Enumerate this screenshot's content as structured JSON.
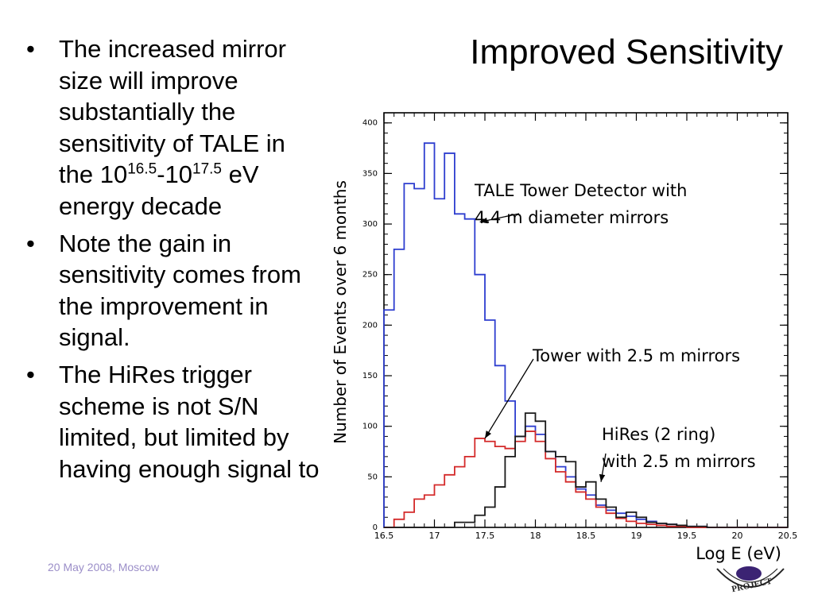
{
  "slide": {
    "title": "Improved Sensitivity",
    "footer": "20 May 2008, Moscow",
    "bullets": [
      {
        "parts": [
          "The increased mirror size will improve substantially the sensitivity of TALE in the 10",
          "16.5",
          "-10",
          "17.5",
          " eV energy decade"
        ]
      },
      {
        "text": "Note the gain in sensitivity comes from the improvement in signal."
      },
      {
        "text": "The HiRes trigger scheme is not S/N limited, but limited by having enough signal to"
      }
    ],
    "bullet_char": "•",
    "logo_text": "PROJECT"
  },
  "chart_data": {
    "type": "line",
    "step": true,
    "title": "",
    "xlabel": "Log E (eV)",
    "ylabel": "Number of Events over 6 months",
    "xlim": [
      16.5,
      20.5
    ],
    "ylim": [
      0,
      410
    ],
    "xticks": [
      "16.5",
      "17",
      "17.5",
      "18",
      "18.5",
      "19",
      "19.5",
      "20",
      "20.5"
    ],
    "yticks": [
      "0",
      "50",
      "100",
      "150",
      "200",
      "250",
      "300",
      "350",
      "400"
    ],
    "grid": false,
    "bin_edges": [
      16.5,
      16.6,
      16.7,
      16.8,
      16.9,
      17.0,
      17.1,
      17.2,
      17.3,
      17.4,
      17.5,
      17.6,
      17.7,
      17.8,
      17.9,
      18.0,
      18.1,
      18.2,
      18.3,
      18.4,
      18.5,
      18.6,
      18.7,
      18.8,
      18.9,
      19.0,
      19.1,
      19.2,
      19.3,
      19.4,
      19.5,
      19.6,
      19.7,
      19.8,
      19.9,
      20.0,
      20.1,
      20.2,
      20.3,
      20.4,
      20.5
    ],
    "series": [
      {
        "color": "#2e3ecf",
        "values": [
          215,
          275,
          340,
          335,
          380,
          325,
          370,
          310,
          305,
          250,
          205,
          160,
          125,
          90,
          100,
          92,
          75,
          60,
          50,
          38,
          32,
          22,
          17,
          14,
          11,
          8,
          6,
          4,
          3,
          2,
          1,
          1,
          0,
          0,
          0,
          0,
          0,
          0,
          0,
          0
        ]
      },
      {
        "color": "#d42a2a",
        "values": [
          0,
          8,
          15,
          28,
          32,
          42,
          52,
          60,
          70,
          88,
          85,
          80,
          78,
          85,
          95,
          85,
          68,
          55,
          45,
          35,
          28,
          20,
          14,
          9,
          6,
          4,
          3,
          2,
          1,
          1,
          0,
          0,
          0,
          0,
          0,
          0,
          0,
          0,
          0,
          0
        ]
      },
      {
        "color": "#1a1a1a",
        "values": [
          0,
          0,
          0,
          0,
          0,
          0,
          0,
          5,
          5,
          12,
          20,
          40,
          70,
          90,
          113,
          105,
          75,
          70,
          65,
          40,
          45,
          28,
          20,
          10,
          15,
          10,
          5,
          4,
          3,
          2,
          1,
          1,
          0,
          0,
          0,
          0,
          0,
          0,
          0,
          0
        ]
      }
    ],
    "annotations": [
      {
        "lines": [
          "TALE Tower Detector with",
          "4.4 m diameter mirrors"
        ],
        "arrow_to": [
          17.45,
          302
        ]
      },
      {
        "lines": [
          "Tower with 2.5 m mirrors"
        ],
        "arrow_to": [
          17.5,
          88
        ]
      },
      {
        "lines": [
          "HiRes (2 ring)",
          "with 2.5 m mirrors"
        ],
        "arrow_to": [
          18.65,
          45
        ]
      }
    ]
  }
}
